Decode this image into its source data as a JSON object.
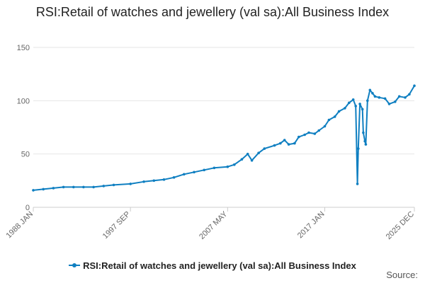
{
  "title": "RSI:Retail of watches and jewellery (val sa):All Business Index",
  "source_label": "Source:",
  "colors": {
    "series": "#0f7fc1",
    "grid": "#e6e6e6",
    "axis": "#cccccc",
    "text": "#666666"
  },
  "chart_data": {
    "type": "line",
    "title": "RSI:Retail of watches and jewellery (val sa):All Business Index",
    "xlabel": "",
    "ylabel": "",
    "ylim": [
      0,
      150
    ],
    "y_ticks": [
      0,
      50,
      100,
      150
    ],
    "x_ticks": [
      "1988 JAN",
      "1997 SEP",
      "2007 MAY",
      "2017 JAN",
      "2025 DEC"
    ],
    "x_range": [
      "1988 JAN",
      "2025 DEC"
    ],
    "legend": "bottom-center",
    "grid": true,
    "series": [
      {
        "name": "RSI:Retail of watches and jewellery (val sa):All Business Index",
        "points": [
          [
            "1988 JAN",
            16
          ],
          [
            "1989 JAN",
            17
          ],
          [
            "1990 JAN",
            18
          ],
          [
            "1991 JAN",
            19
          ],
          [
            "1992 JAN",
            19
          ],
          [
            "1993 JAN",
            19
          ],
          [
            "1994 JAN",
            19
          ],
          [
            "1995 JAN",
            20
          ],
          [
            "1996 JAN",
            21
          ],
          [
            "1997 SEP",
            22
          ],
          [
            "1999 JAN",
            24
          ],
          [
            "2000 JAN",
            25
          ],
          [
            "2001 JAN",
            26
          ],
          [
            "2002 JAN",
            28
          ],
          [
            "2003 JAN",
            31
          ],
          [
            "2004 JAN",
            33
          ],
          [
            "2005 JAN",
            35
          ],
          [
            "2006 JAN",
            37
          ],
          [
            "2007 MAY",
            38
          ],
          [
            "2008 JAN",
            40
          ],
          [
            "2008 OCT",
            45
          ],
          [
            "2009 MAY",
            50
          ],
          [
            "2009 OCT",
            44
          ],
          [
            "2010 JUN",
            51
          ],
          [
            "2011 JAN",
            55
          ],
          [
            "2012 JAN",
            58
          ],
          [
            "2012 AUG",
            60
          ],
          [
            "2013 JAN",
            63
          ],
          [
            "2013 JUN",
            59
          ],
          [
            "2014 JAN",
            60
          ],
          [
            "2014 JUN",
            66
          ],
          [
            "2015 JAN",
            68
          ],
          [
            "2015 JUN",
            70
          ],
          [
            "2016 JAN",
            69
          ],
          [
            "2016 JUN",
            72
          ],
          [
            "2017 JAN",
            76
          ],
          [
            "2017 JUN",
            82
          ],
          [
            "2018 JAN",
            85
          ],
          [
            "2018 JUN",
            90
          ],
          [
            "2019 JAN",
            93
          ],
          [
            "2019 JUN",
            98
          ],
          [
            "2019 NOV",
            101
          ],
          [
            "2020 FEB",
            95
          ],
          [
            "2020 APR",
            22
          ],
          [
            "2020 MAY",
            55
          ],
          [
            "2020 JUL",
            97
          ],
          [
            "2020 OCT",
            92
          ],
          [
            "2020 NOV",
            70
          ],
          [
            "2021 JAN",
            62
          ],
          [
            "2021 FEB",
            59
          ],
          [
            "2021 APR",
            100
          ],
          [
            "2021 JUL",
            110
          ],
          [
            "2021 OCT",
            107
          ],
          [
            "2022 JAN",
            104
          ],
          [
            "2022 JUN",
            103
          ],
          [
            "2023 JAN",
            102
          ],
          [
            "2023 JUN",
            97
          ],
          [
            "2024 JAN",
            99
          ],
          [
            "2024 JUN",
            104
          ],
          [
            "2025 JAN",
            103
          ],
          [
            "2025 JUN",
            106
          ],
          [
            "2025 DEC",
            114
          ]
        ]
      }
    ]
  }
}
